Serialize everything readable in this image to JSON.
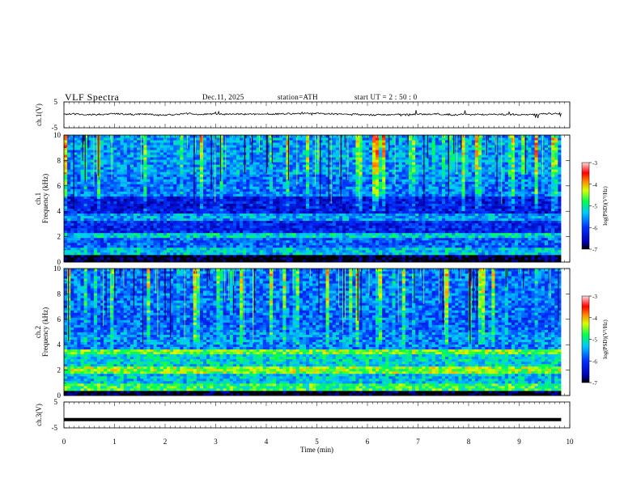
{
  "header": {
    "title": "VLF  Spectra",
    "date": "Dec.11, 2025",
    "station": "station=ATH",
    "start_ut": "start  UT  =   2 : 50 : 0"
  },
  "chart_data": {
    "type": "heatmap",
    "title": "VLF  Spectra",
    "xlabel": "Time  (min)",
    "xlim": [
      0,
      10
    ],
    "x_ticks": [
      "0",
      "1",
      "2",
      "3",
      "4",
      "5",
      "6",
      "7",
      "8",
      "9",
      "10"
    ],
    "data_extent_min": 9.83,
    "panels": [
      {
        "name": "ch1-waveform",
        "type": "line",
        "ylabel": "ch.1(V)",
        "ylim": [
          -5,
          5
        ],
        "y_ticks": [
          "5",
          "-5"
        ],
        "baseline_v": 0.2,
        "noise_v": 0.6
      },
      {
        "name": "ch1-spectrogram",
        "type": "heatmap",
        "ylabel": "ch.1\nFrequency  (kHz)",
        "ylim_khz": [
          0,
          10
        ],
        "y_ticks": [
          "0",
          "2",
          "4",
          "6",
          "8",
          "10"
        ],
        "colorbar": {
          "label": "log(PSD)(V²/Hz)",
          "range": [
            -7,
            -3
          ],
          "ticks": [
            "-3",
            "-4",
            "-5",
            "-6",
            "-7"
          ]
        },
        "band_levels_log_psd": [
          {
            "f_khz": [
              0.0,
              0.5
            ],
            "level": -7.0
          },
          {
            "f_khz": [
              0.5,
              1.2
            ],
            "level": -5.3
          },
          {
            "f_khz": [
              1.2,
              2.0
            ],
            "level": -5.8
          },
          {
            "f_khz": [
              2.0,
              2.4
            ],
            "level": -5.2
          },
          {
            "f_khz": [
              2.4,
              3.3
            ],
            "level": -6.2
          },
          {
            "f_khz": [
              3.3,
              3.8
            ],
            "level": -5.5
          },
          {
            "f_khz": [
              3.8,
              5.2
            ],
            "level": -6.3
          },
          {
            "f_khz": [
              5.2,
              7.0
            ],
            "level": -5.7
          },
          {
            "f_khz": [
              7.0,
              10.0
            ],
            "level": -5.5
          }
        ]
      },
      {
        "name": "ch2-spectrogram",
        "type": "heatmap",
        "ylabel": "ch.2\nFrequency  (kHz)",
        "ylim_khz": [
          0,
          10
        ],
        "y_ticks": [
          "0",
          "2",
          "4",
          "6",
          "8",
          "10"
        ],
        "colorbar": {
          "label": "log(PSD)(V²/Hz)",
          "range": [
            -7,
            -3
          ],
          "ticks": [
            "-3",
            "-4",
            "-5",
            "-6",
            "-7"
          ]
        },
        "band_levels_log_psd": [
          {
            "f_khz": [
              0.0,
              0.3
            ],
            "level": -7.0
          },
          {
            "f_khz": [
              0.3,
              1.0
            ],
            "level": -4.8
          },
          {
            "f_khz": [
              1.0,
              1.8
            ],
            "level": -5.3
          },
          {
            "f_khz": [
              1.8,
              2.3
            ],
            "level": -4.5
          },
          {
            "f_khz": [
              2.3,
              3.3
            ],
            "level": -5.2
          },
          {
            "f_khz": [
              3.3,
              3.7
            ],
            "level": -4.6
          },
          {
            "f_khz": [
              3.7,
              5.0
            ],
            "level": -5.6
          },
          {
            "f_khz": [
              5.0,
              6.5
            ],
            "level": -5.8
          },
          {
            "f_khz": [
              6.5,
              10.0
            ],
            "level": -5.7
          }
        ]
      },
      {
        "name": "ch3-waveform",
        "type": "line",
        "ylabel": "ch.3(V)",
        "ylim": [
          -5,
          5
        ],
        "y_ticks": [
          "5",
          "-5"
        ],
        "baseline_v": -1.8,
        "noise_v": 0.0
      }
    ]
  }
}
